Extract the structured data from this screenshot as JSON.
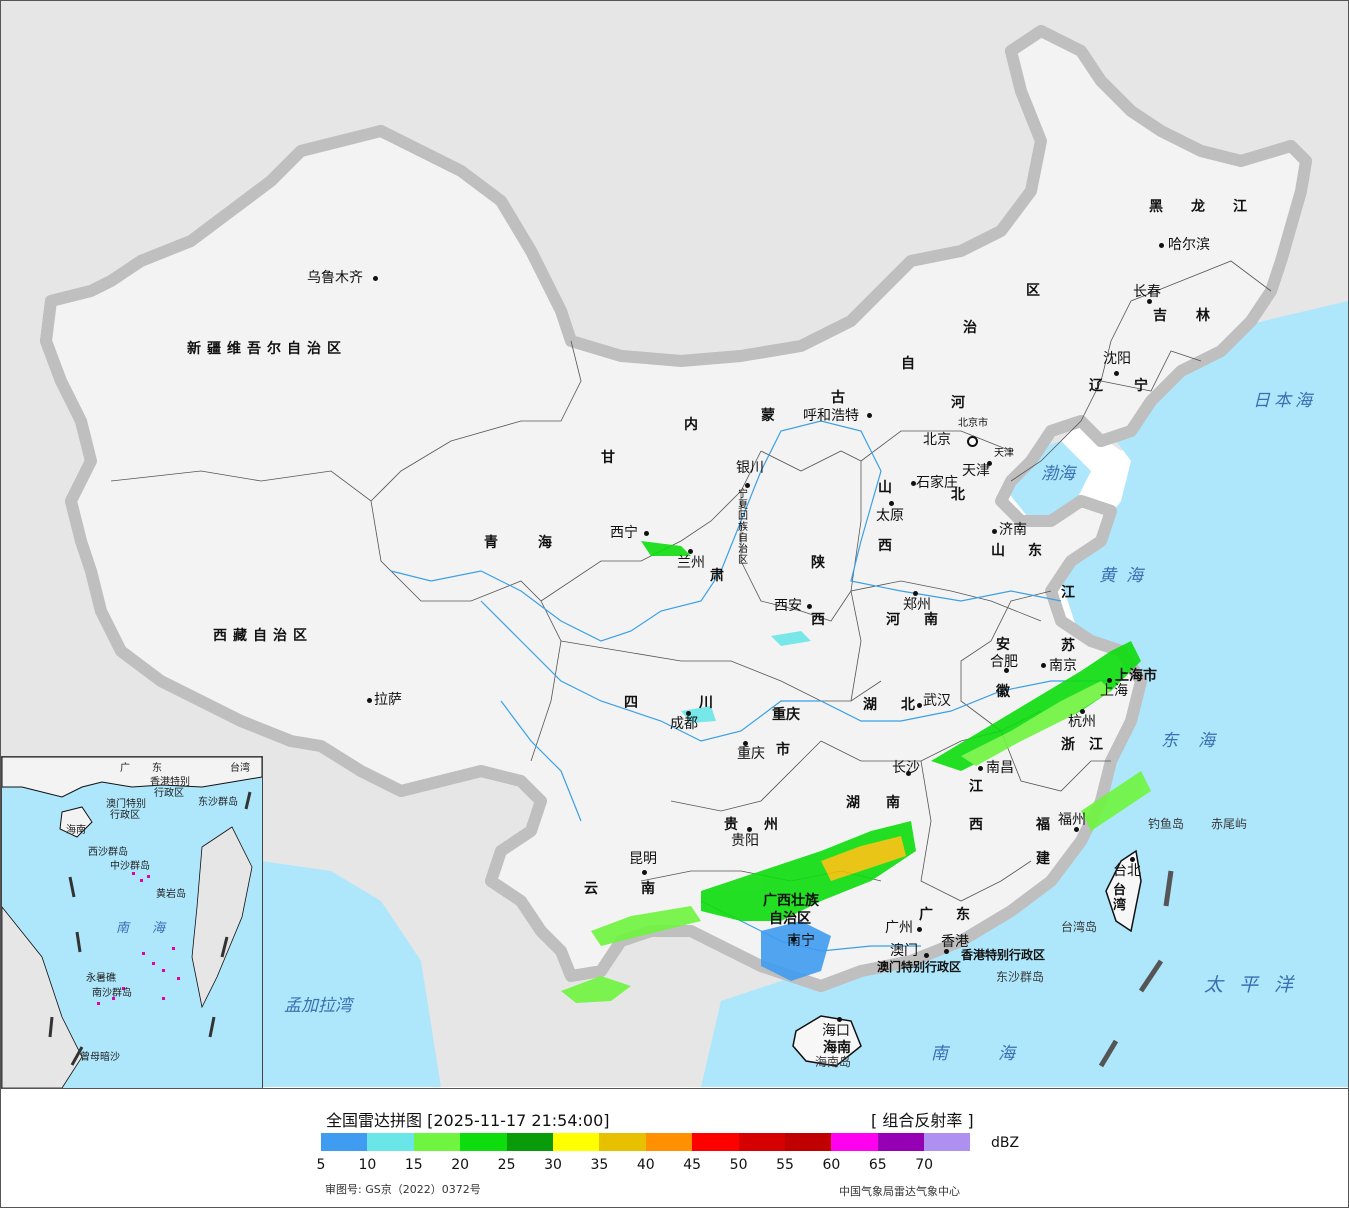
{
  "title": "全国雷达拼图 [2025-11-17 21:54:00]",
  "product": "[ 组合反射率 ]",
  "unit": "dBZ",
  "approval": "审图号: GS京（2022）0372号",
  "source": "中国气象局雷达气象中心",
  "colorbar": {
    "colors": [
      "#3f9cf0",
      "#6ae5e8",
      "#6ff53f",
      "#0ddd0d",
      "#0a9b0a",
      "#ffff00",
      "#e7c100",
      "#ff9000",
      "#ff0000",
      "#d60000",
      "#c00000",
      "#ff00f0",
      "#9600b4",
      "#ad90f0"
    ],
    "ticks": [
      "5",
      "10",
      "15",
      "20",
      "25",
      "30",
      "35",
      "40",
      "45",
      "50",
      "55",
      "60",
      "65",
      "70"
    ]
  },
  "provinces": [
    "新疆维吾尔自治区",
    "西藏自治区",
    "青海",
    "甘",
    "肃",
    "四",
    "川",
    "云",
    "南",
    "贵",
    "州",
    "广西壮族",
    "自治区",
    "广",
    "东",
    "湖",
    "南",
    "湖",
    "北",
    "河",
    "南",
    "陕",
    "西",
    "山",
    "西",
    "山",
    "东",
    "江",
    "苏",
    "安",
    "徽",
    "浙",
    "江",
    "江",
    "西",
    "福",
    "建",
    "内",
    "蒙",
    "古",
    "自",
    "治",
    "区",
    "黑",
    "龙",
    "江",
    "吉",
    "林",
    "辽",
    "宁",
    "河",
    "北",
    "重庆",
    "市",
    "宁夏回族自治区",
    "上海市",
    "台湾",
    "海南",
    "天津",
    "北京市"
  ],
  "cities": [
    "乌鲁木齐",
    "拉萨",
    "西宁",
    "兰州",
    "银川",
    "呼和浩特",
    "北京",
    "天津",
    "石家庄",
    "太原",
    "济南",
    "郑州",
    "西安",
    "成都",
    "重庆",
    "武汉",
    "合肥",
    "南京",
    "上海",
    "杭州",
    "南昌",
    "长沙",
    "贵阳",
    "昆明",
    "南宁",
    "广州",
    "福州",
    "台北",
    "海口",
    "沈阳",
    "长春",
    "哈尔滨",
    "香港",
    "澳门"
  ],
  "seas": [
    "日本海",
    "渤海",
    "黄海",
    "东海",
    "太平洋",
    "南海",
    "孟加拉湾"
  ],
  "islands": [
    "钓鱼岛",
    "赤尾屿",
    "台湾岛",
    "海南岛",
    "东沙群岛",
    "香港特别行政区",
    "澳门特别行政区"
  ],
  "inset": {
    "labels": [
      "广",
      "东",
      "台湾",
      "香港特别",
      "行政区",
      "澳门特别",
      "行政区",
      "东沙群岛",
      "海南",
      "西沙群岛",
      "中沙群岛",
      "黄岩岛",
      "南",
      "海",
      "南沙群岛",
      "曾母暗沙",
      "永暑礁"
    ]
  }
}
